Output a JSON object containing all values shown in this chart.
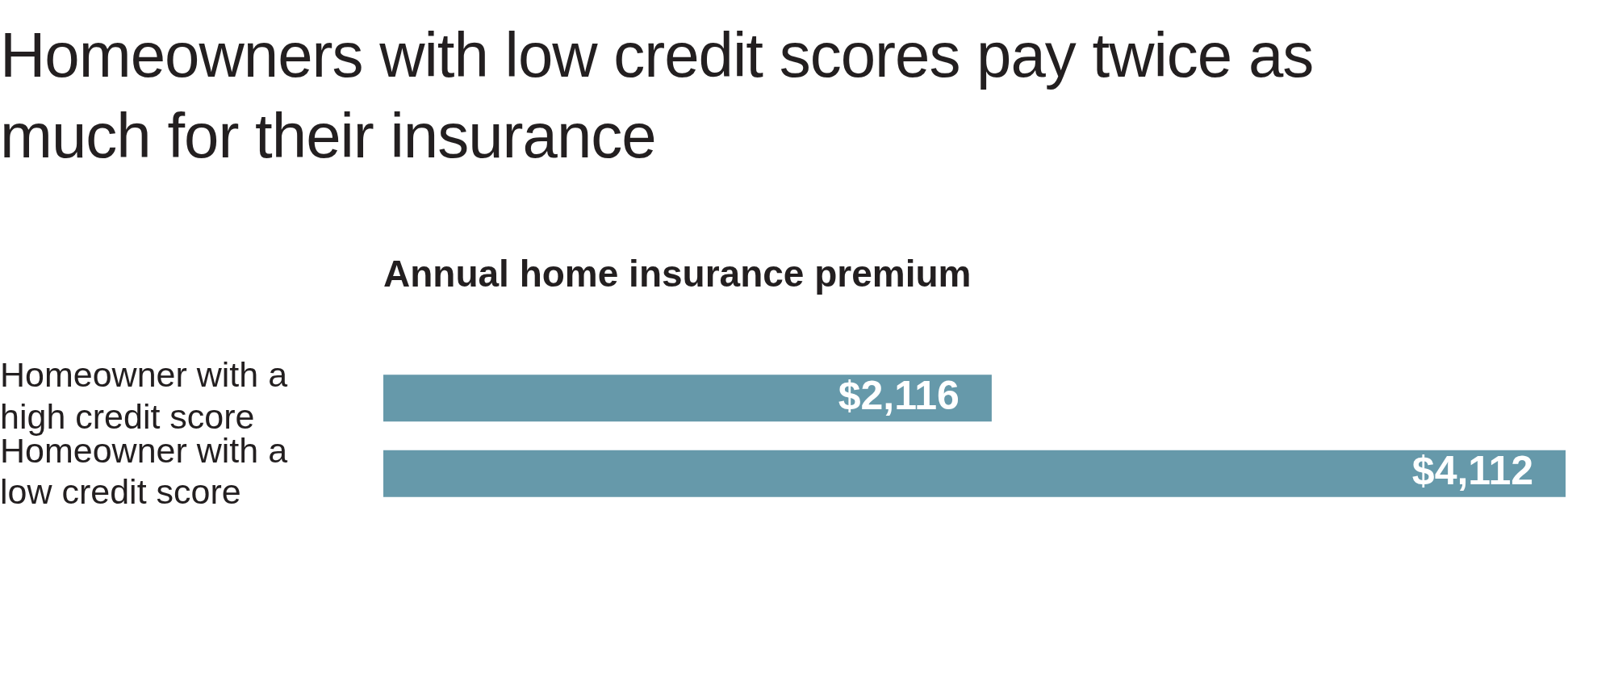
{
  "chart_data": {
    "type": "bar",
    "orientation": "horizontal",
    "title": "Homeowners with low credit scores pay twice as much for their insurance",
    "subtitle": "Annual home insurance premium",
    "categories": [
      "Homeowner with a high credit score",
      "Homeowner with a low credit score"
    ],
    "values": [
      2116,
      4112
    ],
    "value_labels": [
      "$2,116",
      "$4,112"
    ],
    "color": "#6699aa",
    "tick_labels": "y",
    "legend": false
  }
}
